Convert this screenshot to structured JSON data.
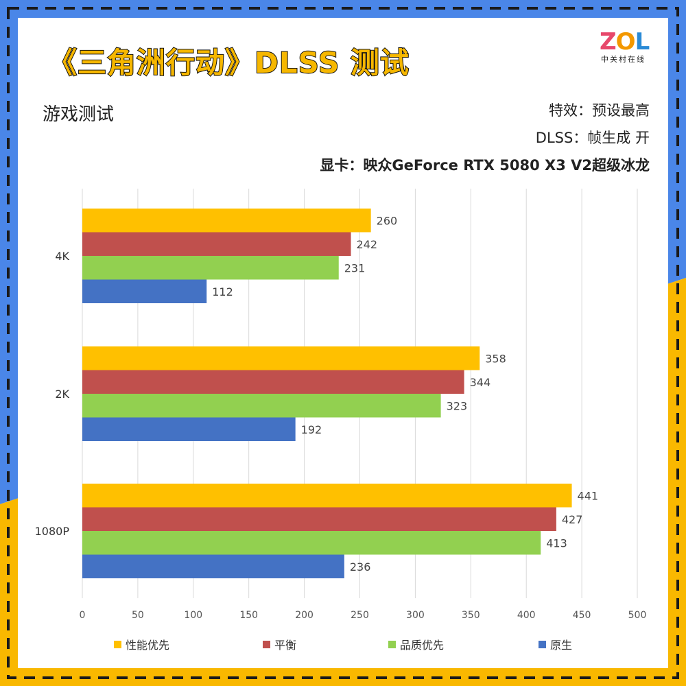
{
  "header": {
    "title": "《三角洲行动》DLSS 测试",
    "subtitle": "游戏测试",
    "settings": [
      "特效：预设最高",
      "DLSS：帧生成 开"
    ],
    "gpu": "显卡：映众GeForce RTX 5080 X3 V2超级冰龙"
  },
  "logo": {
    "word_z": "Z",
    "word_o": "O",
    "word_l": "L",
    "sub": "中关村在线"
  },
  "colors": {
    "frame_blue": "#4a86e8",
    "frame_yellow": "#f9b800",
    "dash": "#1a1a1a"
  },
  "chart_data": {
    "type": "bar",
    "orientation": "horizontal",
    "categories": [
      "4K",
      "2K",
      "1080P"
    ],
    "series": [
      {
        "name": "性能优先",
        "color": "#ffc000",
        "values": [
          260,
          358,
          441
        ]
      },
      {
        "name": "平衡",
        "color": "#c0504d",
        "values": [
          242,
          344,
          427
        ]
      },
      {
        "name": "品质优先",
        "color": "#92d050",
        "values": [
          231,
          323,
          413
        ]
      },
      {
        "name": "原生",
        "color": "#4472c4",
        "values": [
          112,
          192,
          236
        ]
      }
    ],
    "xlim": [
      0,
      500
    ],
    "xticks": [
      0,
      50,
      100,
      150,
      200,
      250,
      300,
      350,
      400,
      450,
      500
    ],
    "grid": true,
    "legend_position": "bottom"
  }
}
